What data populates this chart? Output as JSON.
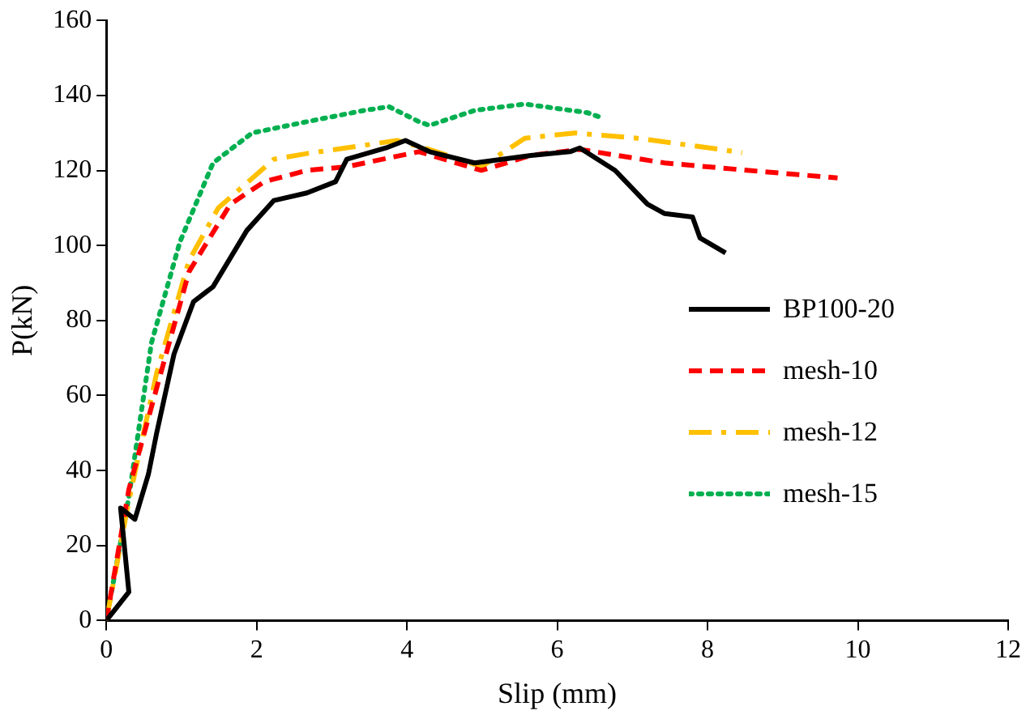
{
  "chart_data": {
    "type": "line",
    "xlabel": "Slip (mm)",
    "ylabel": "P(kN)",
    "xlim": [
      0,
      12
    ],
    "xticks": [
      0,
      2,
      4,
      6,
      8,
      10,
      12
    ],
    "ylim": [
      0,
      160
    ],
    "yticks": [
      0,
      20,
      40,
      60,
      80,
      100,
      120,
      140,
      160
    ],
    "grid": false,
    "legend": "right",
    "marker": "none",
    "series": [
      {
        "name": "BP100-20",
        "color": "#000000",
        "line_style": "solid",
        "x": [
          0,
          0.3,
          0.19,
          0.38,
          0.56,
          0.67,
          0.9,
          1.16,
          1.42,
          1.87,
          2.23,
          2.67,
          3.05,
          3.2,
          3.72,
          3.98,
          4.3,
          4.9,
          5.65,
          6.17,
          6.3,
          6.77,
          7.2,
          7.43,
          7.8,
          7.9,
          8.24
        ],
        "values": [
          0,
          7.6,
          30,
          27,
          39,
          50,
          71,
          85,
          89,
          104,
          112,
          114,
          117,
          123,
          126,
          128,
          125,
          122,
          124,
          125,
          126,
          120,
          111,
          108.5,
          107.6,
          102,
          98
        ]
      },
      {
        "name": "mesh-10",
        "color": "#ff0000",
        "line_style": "dashed",
        "x": [
          0,
          0.3,
          0.67,
          1.1,
          1.65,
          2.1,
          2.67,
          3.2,
          4.16,
          4.99,
          5.65,
          6.3,
          7.43,
          8.55,
          9.73
        ],
        "values": [
          0,
          35,
          62,
          93,
          111,
          117,
          120,
          121,
          125,
          120,
          124,
          125.6,
          122,
          120,
          118
        ]
      },
      {
        "name": "mesh-12",
        "color": "#ffc000",
        "line_style": "dashdot",
        "x": [
          0,
          0.3,
          0.67,
          1.1,
          1.49,
          2.23,
          2.67,
          3.87,
          4.3,
          4.99,
          5.57,
          6.24,
          7.06,
          8.17,
          8.46
        ],
        "values": [
          0,
          32,
          66,
          96,
          110,
          123,
          124.5,
          128,
          125.6,
          121,
          128.6,
          130,
          128.6,
          125.6,
          124.7
        ]
      },
      {
        "name": "mesh-15",
        "color": "#00b050",
        "line_style": "dotted",
        "x": [
          0,
          0.3,
          0.6,
          0.98,
          1.42,
          1.94,
          2.67,
          3.43,
          3.76,
          4.16,
          4.3,
          4.9,
          5.57,
          6.4,
          6.6
        ],
        "values": [
          0,
          33,
          74,
          101,
          122,
          130,
          133,
          136,
          137,
          133,
          132,
          136,
          137.7,
          135.4,
          134
        ]
      }
    ]
  }
}
